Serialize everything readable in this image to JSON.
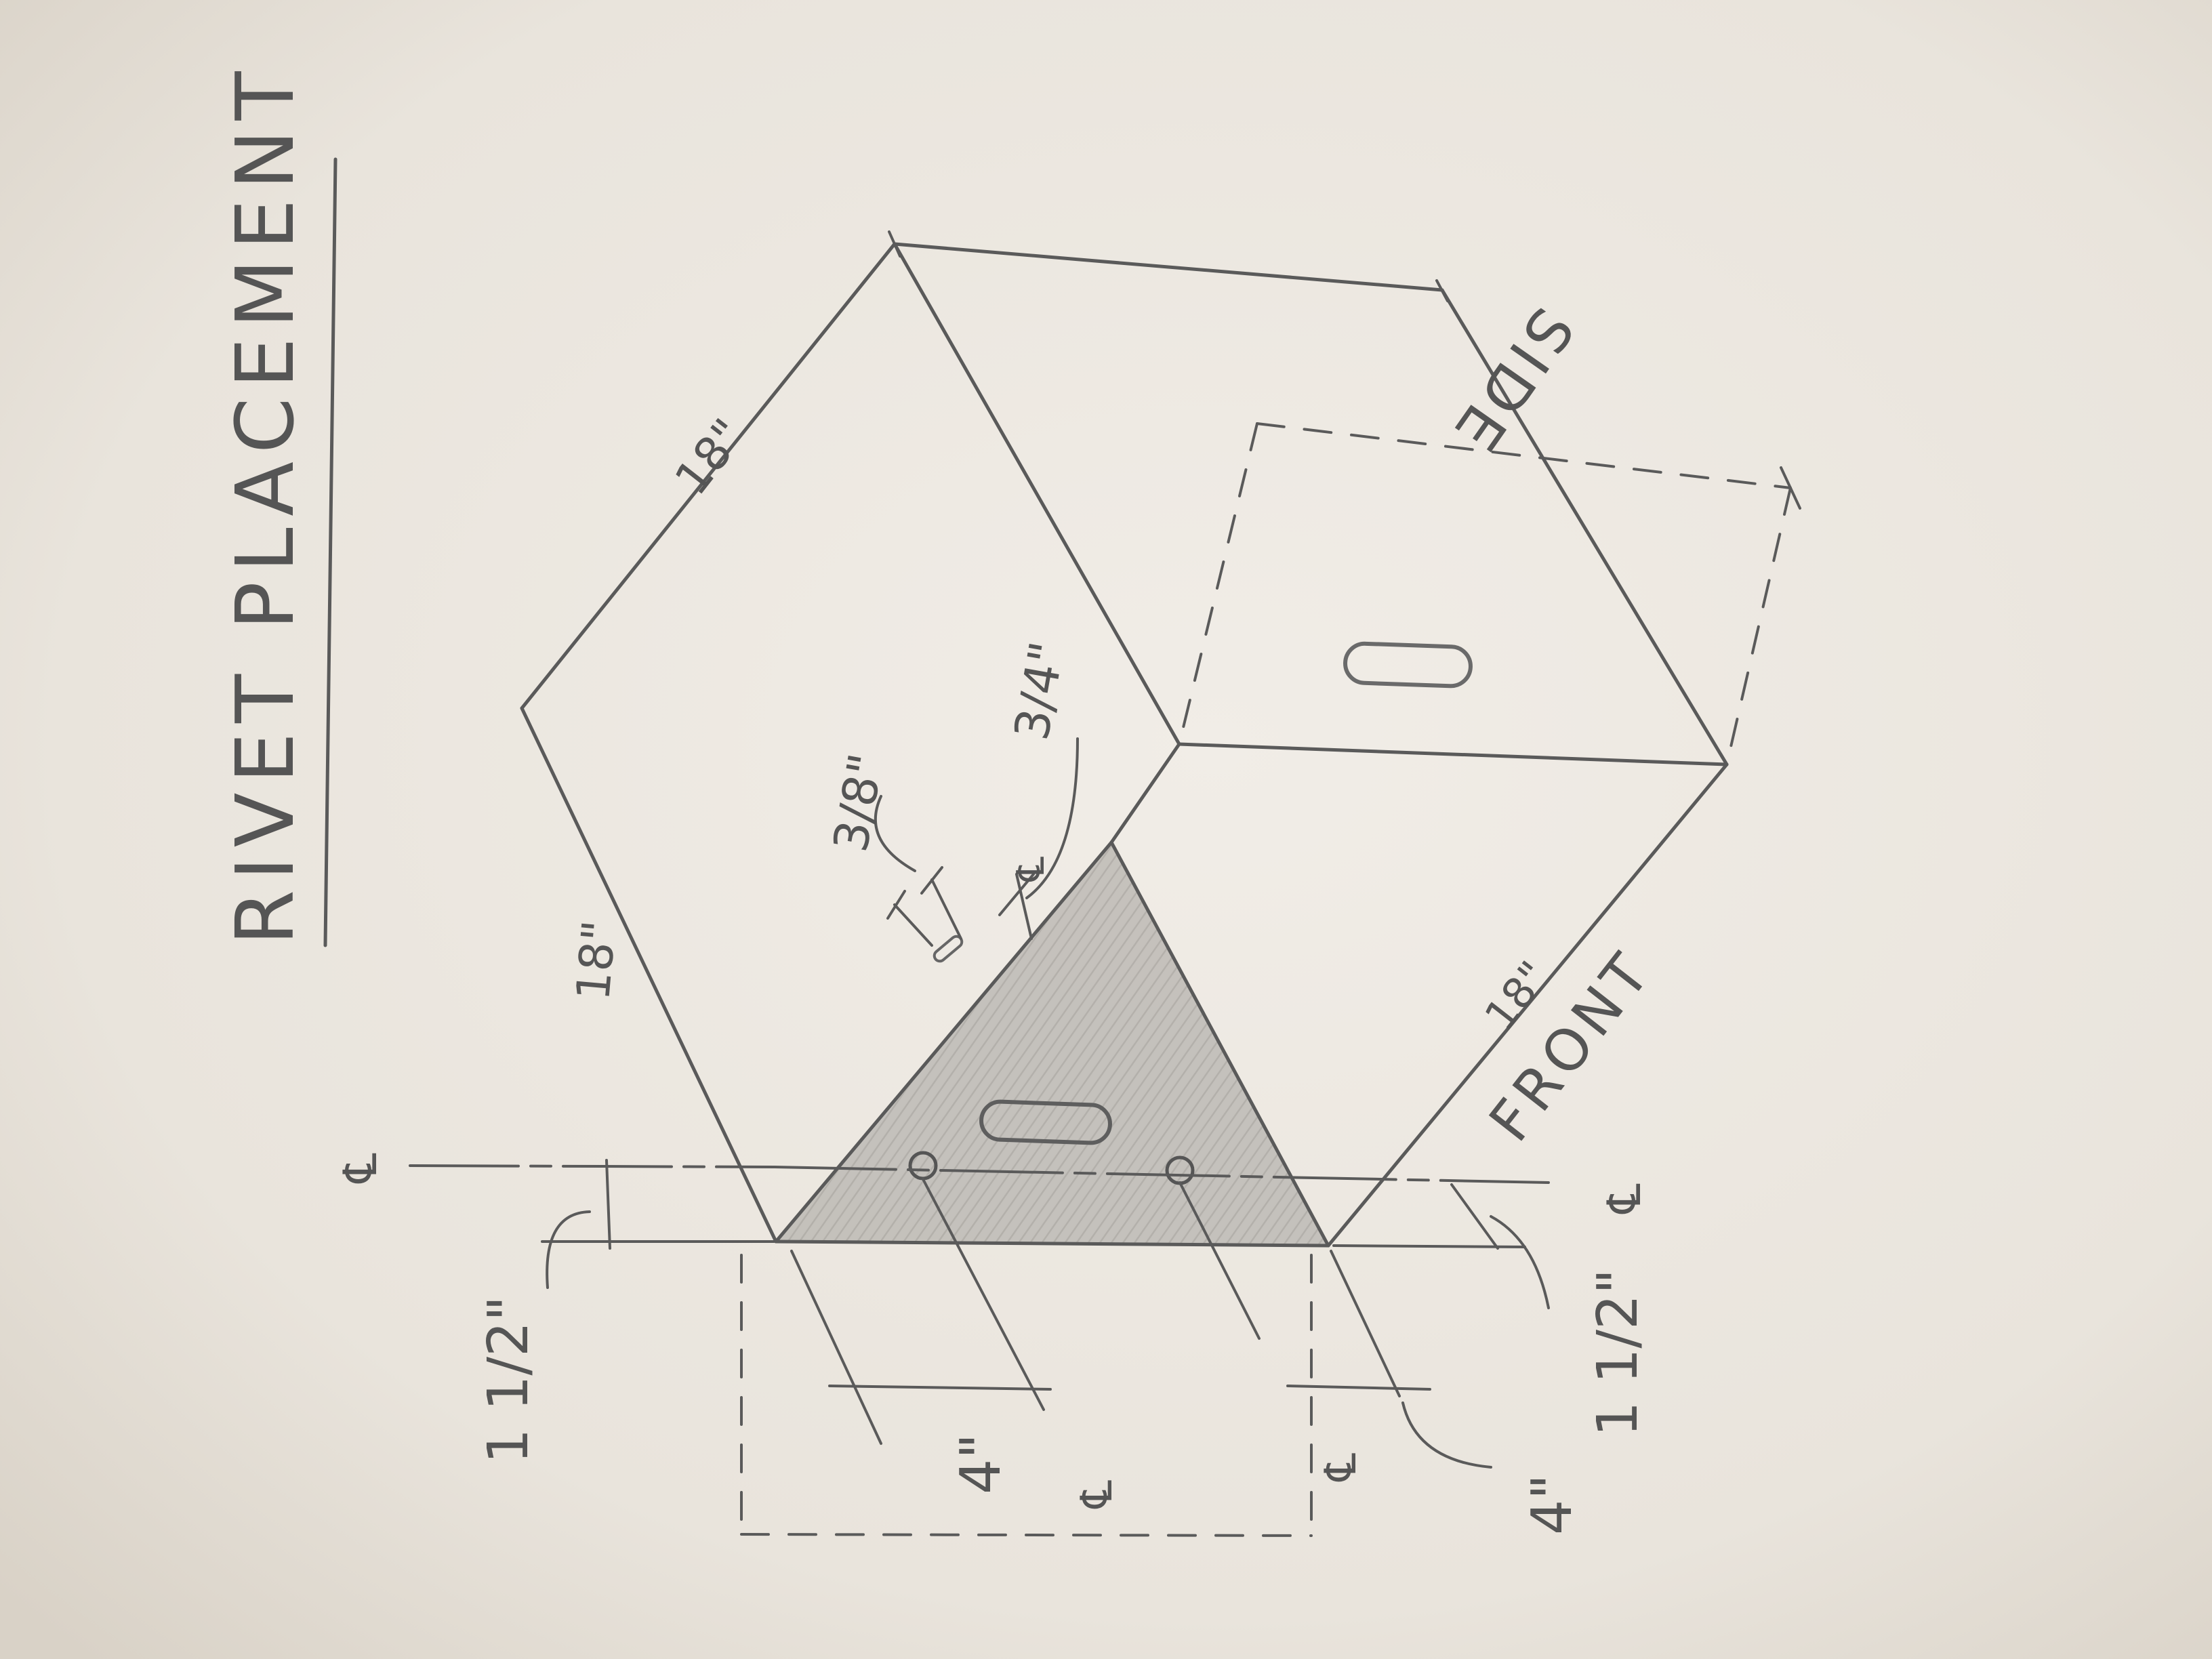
{
  "title": "RIVET PLACEMENT",
  "labels": {
    "top_edge_left": "18\"",
    "left_edge": "18\"",
    "front_edge": "18\"",
    "front_face": "FRONT",
    "side_face": "SIDE",
    "gap_three_eighths": "3/8\"",
    "gap_three_quarters": "3/4\"",
    "offset_left": "1 1/2\"",
    "offset_right": "1 1/2\"",
    "depth_left": "4\"",
    "depth_right": "4\"",
    "centerline_symbol": "℄"
  },
  "colors": {
    "paper": "#efebe5",
    "pencil": "#5a5a5a",
    "shading": "#b9b6b1"
  }
}
